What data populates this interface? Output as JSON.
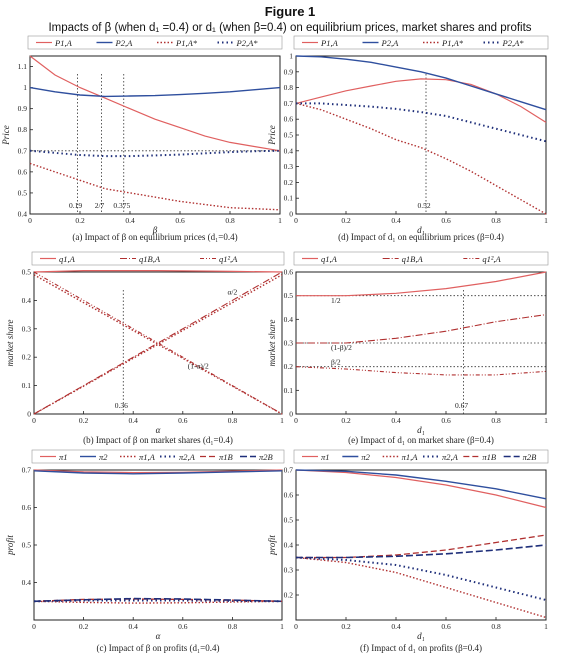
{
  "figure": {
    "title": "Figure 1",
    "subtitle": "Impacts of β (when d₁ =0.4) or d₁ (when β=0.4) on equilibrium prices, market shares and profits"
  },
  "colors": {
    "red": "#e06060",
    "blue": "#2f4f9e",
    "dred": "#b03030",
    "dblue": "#1f2f7a",
    "axis": "#222222",
    "ref": "#333333"
  },
  "chart_data": [
    {
      "type": "line",
      "caption": "(a) Impact of β on equilibrium prices (d₁=0.4)",
      "xlabel": "β",
      "ylabel": "Price",
      "xlim": [
        0,
        1
      ],
      "ylim": [
        0.4,
        1.15
      ],
      "xticks": [
        0,
        0.2,
        0.4,
        0.6,
        0.8,
        1
      ],
      "yticks": [
        0.4,
        0.5,
        0.6,
        0.7,
        0.8,
        0.9,
        1.0,
        1.1
      ],
      "legend": [
        "P1,A",
        "P2,A",
        "P1,A*",
        "P2,A*"
      ],
      "annotations": [
        {
          "text": "0.19",
          "x": 0.19
        },
        {
          "text": "2/7",
          "x": 0.286
        },
        {
          "text": "0.375",
          "x": 0.375
        }
      ],
      "vlines": [
        0.19,
        0.286,
        0.375
      ],
      "hlines": [
        0.7
      ],
      "series": [
        {
          "name": "P1,A",
          "style": "red",
          "x": [
            0,
            0.1,
            0.2,
            0.3,
            0.4,
            0.5,
            0.6,
            0.7,
            0.8,
            0.9,
            1
          ],
          "y": [
            1.15,
            1.06,
            1.0,
            0.95,
            0.9,
            0.85,
            0.81,
            0.77,
            0.74,
            0.72,
            0.7
          ]
        },
        {
          "name": "P2,A",
          "style": "blue",
          "x": [
            0,
            0.1,
            0.2,
            0.3,
            0.4,
            0.5,
            0.6,
            0.7,
            0.8,
            0.9,
            1
          ],
          "y": [
            1.0,
            0.98,
            0.965,
            0.958,
            0.96,
            0.962,
            0.967,
            0.973,
            0.98,
            0.99,
            1.0
          ]
        },
        {
          "name": "P1,A*",
          "style": "reddot",
          "x": [
            0,
            0.1,
            0.2,
            0.3,
            0.4,
            0.5,
            0.6,
            0.7,
            0.8,
            0.9,
            1
          ],
          "y": [
            0.64,
            0.6,
            0.56,
            0.52,
            0.5,
            0.48,
            0.46,
            0.445,
            0.43,
            0.425,
            0.42
          ]
        },
        {
          "name": "P2,A*",
          "style": "bluedot",
          "x": [
            0,
            0.1,
            0.2,
            0.3,
            0.4,
            0.5,
            0.6,
            0.7,
            0.8,
            0.9,
            1
          ],
          "y": [
            0.7,
            0.69,
            0.68,
            0.675,
            0.675,
            0.678,
            0.682,
            0.688,
            0.694,
            0.698,
            0.7
          ]
        }
      ]
    },
    {
      "type": "line",
      "caption": "(d) Impact of d₁ on equilibrium prices (β=0.4)",
      "xlabel": "d₁",
      "ylabel": "Price",
      "xlim": [
        0,
        1
      ],
      "ylim": [
        0,
        1
      ],
      "xticks": [
        0,
        0.2,
        0.4,
        0.6,
        0.8,
        1
      ],
      "yticks": [
        0,
        0.1,
        0.2,
        0.3,
        0.4,
        0.5,
        0.6,
        0.7,
        0.8,
        0.9,
        1
      ],
      "legend": [
        "P1,A",
        "P2,A",
        "P1,A*",
        "P2,A*"
      ],
      "annotations": [
        {
          "text": "0.52",
          "x": 0.52
        }
      ],
      "vlines": [
        0.52
      ],
      "hlines": [],
      "series": [
        {
          "name": "P1,A",
          "style": "red",
          "x": [
            0,
            0.1,
            0.2,
            0.3,
            0.4,
            0.5,
            0.6,
            0.7,
            0.8,
            0.9,
            1
          ],
          "y": [
            0.7,
            0.74,
            0.78,
            0.81,
            0.84,
            0.855,
            0.85,
            0.82,
            0.76,
            0.68,
            0.58
          ]
        },
        {
          "name": "P2,A",
          "style": "blue",
          "x": [
            0,
            0.1,
            0.2,
            0.3,
            0.4,
            0.5,
            0.6,
            0.7,
            0.8,
            0.9,
            1
          ],
          "y": [
            1.0,
            0.995,
            0.98,
            0.96,
            0.93,
            0.9,
            0.86,
            0.81,
            0.76,
            0.71,
            0.66
          ]
        },
        {
          "name": "P1,A*",
          "style": "reddot",
          "x": [
            0,
            0.1,
            0.2,
            0.3,
            0.4,
            0.5,
            0.6,
            0.7,
            0.8,
            0.9,
            1
          ],
          "y": [
            0.7,
            0.66,
            0.6,
            0.54,
            0.47,
            0.42,
            0.35,
            0.27,
            0.18,
            0.09,
            0.0
          ]
        },
        {
          "name": "P2,A*",
          "style": "bluedot",
          "x": [
            0,
            0.1,
            0.2,
            0.3,
            0.4,
            0.5,
            0.6,
            0.7,
            0.8,
            0.9,
            1
          ],
          "y": [
            0.7,
            0.7,
            0.69,
            0.68,
            0.665,
            0.645,
            0.62,
            0.58,
            0.54,
            0.5,
            0.46
          ]
        }
      ]
    },
    {
      "type": "line",
      "caption": "(b) Impact of β on market shares (d₁=0.4)",
      "xlabel": "α",
      "ylabel": "market share",
      "xlim": [
        0,
        1
      ],
      "ylim": [
        0,
        0.5
      ],
      "xticks": [
        0,
        0.2,
        0.4,
        0.6,
        0.8,
        1
      ],
      "yticks": [
        0,
        0.1,
        0.2,
        0.3,
        0.4,
        0.5
      ],
      "legend": [
        "q1,A",
        "q1B,A",
        "q1²,A"
      ],
      "annotations": [
        {
          "text": "0.36",
          "x": 0.36
        },
        {
          "text": "α/2",
          "x": 0.78,
          "y": 0.42
        },
        {
          "text": "(1-α)/2",
          "x": 0.62,
          "y": 0.16
        }
      ],
      "vlines": [
        0.36
      ],
      "hlines": [],
      "series": [
        {
          "name": "q1,A",
          "style": "red",
          "x": [
            0,
            0.2,
            0.36,
            0.5,
            0.8,
            1
          ],
          "y": [
            0.5,
            0.505,
            0.505,
            0.505,
            0.502,
            0.5
          ]
        },
        {
          "name": "q1B,A",
          "style": "reddashdot",
          "x": [
            0,
            1
          ],
          "y": [
            0.0,
            0.5
          ]
        },
        {
          "name": "q1²,A",
          "style": "reddashdot2",
          "x": [
            0,
            1
          ],
          "y": [
            0.5,
            0.0
          ]
        },
        {
          "name": "q1B,A*",
          "style": "reddot",
          "x": [
            0,
            1
          ],
          "y": [
            0.0,
            0.49
          ]
        },
        {
          "name": "q1²,A*",
          "style": "reddot",
          "x": [
            0,
            1
          ],
          "y": [
            0.49,
            0.0
          ]
        }
      ]
    },
    {
      "type": "line",
      "caption": "(e) Impact of d₁ on market share (β=0.4)",
      "xlabel": "d₁",
      "ylabel": "market share",
      "xlim": [
        0,
        1
      ],
      "ylim": [
        0,
        0.6
      ],
      "xticks": [
        0,
        0.2,
        0.4,
        0.6,
        0.8,
        1
      ],
      "yticks": [
        0,
        0.1,
        0.2,
        0.3,
        0.4,
        0.5,
        0.6
      ],
      "legend": [
        "q1,A",
        "q1B,A",
        "q1²,A"
      ],
      "annotations": [
        {
          "text": "0.67",
          "x": 0.67
        },
        {
          "text": "1/2",
          "x": 0.14,
          "y": 0.47
        },
        {
          "text": "(1-β)/2",
          "x": 0.14,
          "y": 0.27
        },
        {
          "text": "β/2",
          "x": 0.14,
          "y": 0.21
        }
      ],
      "vlines": [
        0.67
      ],
      "hlines": [
        0.5,
        0.3,
        0.2
      ],
      "series": [
        {
          "name": "q1,A",
          "style": "red",
          "x": [
            0,
            0.2,
            0.4,
            0.6,
            0.8,
            1
          ],
          "y": [
            0.5,
            0.5,
            0.51,
            0.53,
            0.56,
            0.6
          ]
        },
        {
          "name": "q1B,A",
          "style": "reddashdot",
          "x": [
            0,
            0.2,
            0.4,
            0.6,
            0.8,
            1
          ],
          "y": [
            0.3,
            0.3,
            0.32,
            0.35,
            0.39,
            0.42
          ]
        },
        {
          "name": "q1²,A",
          "style": "reddashdot2",
          "x": [
            0,
            0.2,
            0.4,
            0.6,
            0.8,
            1
          ],
          "y": [
            0.2,
            0.19,
            0.175,
            0.165,
            0.165,
            0.18
          ]
        }
      ]
    },
    {
      "type": "line",
      "caption": "(c) Impact of β on profits (d₁=0.4)",
      "xlabel": "α",
      "ylabel": "profit",
      "xlim": [
        0,
        1
      ],
      "ylim": [
        0.3,
        0.7
      ],
      "xticks": [
        0,
        0.2,
        0.4,
        0.6,
        0.8,
        1
      ],
      "yticks": [
        0.4,
        0.5,
        0.6,
        0.7
      ],
      "legend": [
        "π1",
        "π2",
        "π1,A",
        "π2,A",
        "π1B",
        "π2B"
      ],
      "annotations": [],
      "vlines": [],
      "hlines": [],
      "series": [
        {
          "name": "π1",
          "style": "red",
          "x": [
            0,
            0.2,
            0.4,
            0.6,
            0.8,
            1
          ],
          "y": [
            0.7,
            0.695,
            0.693,
            0.694,
            0.697,
            0.7
          ]
        },
        {
          "name": "π2",
          "style": "blue",
          "x": [
            0,
            0.2,
            0.4,
            0.6,
            0.8,
            1
          ],
          "y": [
            0.698,
            0.692,
            0.69,
            0.692,
            0.695,
            0.698
          ]
        },
        {
          "name": "π1,A",
          "style": "reddot",
          "x": [
            0,
            0.2,
            0.4,
            0.6,
            0.8,
            1
          ],
          "y": [
            0.35,
            0.347,
            0.345,
            0.346,
            0.348,
            0.35
          ]
        },
        {
          "name": "π2,A",
          "style": "bluedot",
          "x": [
            0,
            0.2,
            0.4,
            0.6,
            0.8,
            1
          ],
          "y": [
            0.35,
            0.352,
            0.352,
            0.352,
            0.351,
            0.35
          ]
        },
        {
          "name": "π1B",
          "style": "reddash",
          "x": [
            0,
            0.2,
            0.4,
            0.6,
            0.8,
            1
          ],
          "y": [
            0.35,
            0.355,
            0.356,
            0.355,
            0.353,
            0.35
          ]
        },
        {
          "name": "π2B",
          "style": "bluedash",
          "x": [
            0,
            0.2,
            0.4,
            0.6,
            0.8,
            1
          ],
          "y": [
            0.35,
            0.354,
            0.357,
            0.356,
            0.353,
            0.35
          ]
        }
      ]
    },
    {
      "type": "line",
      "caption": "(f) Impact of d₁ on profits (β=0.4)",
      "xlabel": "d₁",
      "ylabel": "profit",
      "xlim": [
        0,
        1
      ],
      "ylim": [
        0.1,
        0.7
      ],
      "xticks": [
        0,
        0.2,
        0.4,
        0.6,
        0.8,
        1
      ],
      "yticks": [
        0.2,
        0.3,
        0.4,
        0.5,
        0.6,
        0.7
      ],
      "legend": [
        "π1",
        "π2",
        "π1,A",
        "π2,A",
        "π1B",
        "π2B"
      ],
      "annotations": [],
      "vlines": [],
      "hlines": [],
      "series": [
        {
          "name": "π1",
          "style": "red",
          "x": [
            0,
            0.2,
            0.4,
            0.6,
            0.8,
            1
          ],
          "y": [
            0.7,
            0.69,
            0.67,
            0.64,
            0.6,
            0.55
          ]
        },
        {
          "name": "π2",
          "style": "blue",
          "x": [
            0,
            0.2,
            0.4,
            0.6,
            0.8,
            1
          ],
          "y": [
            0.7,
            0.695,
            0.68,
            0.655,
            0.625,
            0.585
          ]
        },
        {
          "name": "π1,A",
          "style": "reddot",
          "x": [
            0,
            0.2,
            0.4,
            0.6,
            0.8,
            1
          ],
          "y": [
            0.35,
            0.33,
            0.29,
            0.23,
            0.17,
            0.11
          ]
        },
        {
          "name": "π2,A",
          "style": "bluedot",
          "x": [
            0,
            0.2,
            0.4,
            0.6,
            0.8,
            1
          ],
          "y": [
            0.35,
            0.34,
            0.32,
            0.28,
            0.23,
            0.18
          ]
        },
        {
          "name": "π1B",
          "style": "reddash",
          "x": [
            0,
            0.2,
            0.4,
            0.6,
            0.8,
            1
          ],
          "y": [
            0.35,
            0.35,
            0.36,
            0.38,
            0.41,
            0.44
          ]
        },
        {
          "name": "π2B",
          "style": "bluedash",
          "x": [
            0,
            0.2,
            0.4,
            0.6,
            0.8,
            1
          ],
          "y": [
            0.35,
            0.35,
            0.355,
            0.365,
            0.38,
            0.4
          ]
        }
      ]
    }
  ]
}
